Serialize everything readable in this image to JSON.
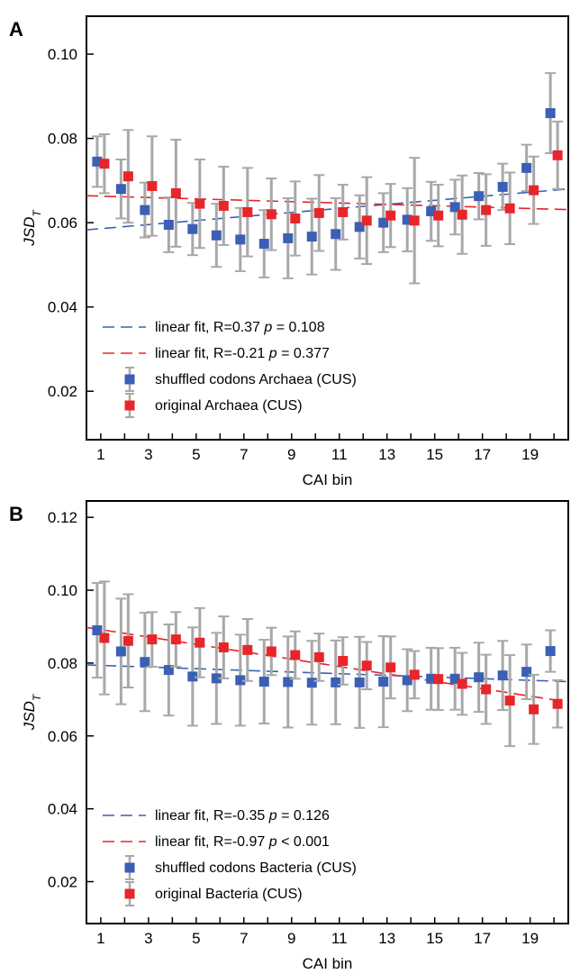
{
  "chart_data": [
    {
      "panel": "A",
      "type": "scatter",
      "xlabel": "CAI bin",
      "ylabel": "JSD",
      "ylabel_sub": "T",
      "xlim": [
        0.4,
        20.6
      ],
      "ylim": [
        0.0085,
        0.109
      ],
      "xticks": [
        1,
        3,
        5,
        7,
        9,
        11,
        13,
        15,
        17,
        19
      ],
      "yticks": [
        0.02,
        0.04,
        0.06,
        0.08,
        0.1
      ],
      "ytick_labels": [
        "0.02",
        "0.04",
        "0.06",
        "0.08",
        "0.10"
      ],
      "colors": {
        "shuffled": "#3a5fb5",
        "original": "#e8252a",
        "errorbar": "#a8a8a8"
      },
      "series": [
        {
          "name": "shuffled codons Archaea (CUS)",
          "marker": "square",
          "color": "#3a5fb5",
          "x": [
            1,
            2,
            3,
            4,
            5,
            6,
            7,
            8,
            9,
            10,
            11,
            12,
            13,
            14,
            15,
            16,
            17,
            18,
            19,
            20
          ],
          "y": [
            0.0745,
            0.068,
            0.063,
            0.0595,
            0.0585,
            0.057,
            0.056,
            0.055,
            0.0563,
            0.0567,
            0.0573,
            0.059,
            0.06,
            0.0607,
            0.0627,
            0.0637,
            0.0663,
            0.0685,
            0.073,
            0.086
          ],
          "err": [
            0.006,
            0.007,
            0.0065,
            0.0065,
            0.0062,
            0.0075,
            0.0075,
            0.008,
            0.0095,
            0.009,
            0.0085,
            0.0075,
            0.007,
            0.0075,
            0.007,
            0.0065,
            0.0055,
            0.0055,
            0.0055,
            0.0095
          ]
        },
        {
          "name": "original Archaea (CUS)",
          "marker": "square",
          "color": "#e8252a",
          "x": [
            1,
            2,
            3,
            4,
            5,
            6,
            7,
            8,
            9,
            10,
            11,
            12,
            13,
            14,
            15,
            16,
            17,
            18,
            19,
            20
          ],
          "y": [
            0.074,
            0.071,
            0.0687,
            0.067,
            0.0645,
            0.064,
            0.0625,
            0.062,
            0.061,
            0.0623,
            0.0625,
            0.0605,
            0.0617,
            0.0605,
            0.0617,
            0.0619,
            0.063,
            0.0634,
            0.0677,
            0.076
          ],
          "err": [
            0.007,
            0.011,
            0.0118,
            0.0127,
            0.0105,
            0.0093,
            0.0105,
            0.0085,
            0.0088,
            0.009,
            0.0065,
            0.0103,
            0.0075,
            0.0149,
            0.0073,
            0.0093,
            0.0085,
            0.0085,
            0.008,
            0.008
          ]
        }
      ],
      "fits": [
        {
          "label": "linear fit, R=0.37",
          "p_text": "p",
          "p_value": "= 0.108",
          "color": "#3a5fb5",
          "y_start": 0.0583,
          "y_end": 0.068
        },
        {
          "label": "linear fit, R=-0.21",
          "p_text": "p",
          "p_value": "= 0.377",
          "color": "#e8252a",
          "y_start": 0.0664,
          "y_end": 0.0631
        }
      ],
      "legend_location": "lower-left"
    },
    {
      "panel": "B",
      "type": "scatter",
      "xlabel": "CAI bin",
      "ylabel": "JSD",
      "ylabel_sub": "T",
      "xlim": [
        0.4,
        20.6
      ],
      "ylim": [
        0.0085,
        0.1245
      ],
      "xticks": [
        1,
        3,
        5,
        7,
        9,
        11,
        13,
        15,
        17,
        19
      ],
      "yticks": [
        0.02,
        0.04,
        0.06,
        0.08,
        0.1,
        0.12
      ],
      "ytick_labels": [
        "0.02",
        "0.04",
        "0.06",
        "0.08",
        "0.10",
        "0.12"
      ],
      "colors": {
        "shuffled": "#3a5fb5",
        "original": "#e8252a",
        "errorbar": "#a8a8a8"
      },
      "series": [
        {
          "name": "shuffled codons Bacteria (CUS)",
          "marker": "square",
          "color": "#3a5fb5",
          "x": [
            1,
            2,
            3,
            4,
            5,
            6,
            7,
            8,
            9,
            10,
            11,
            12,
            13,
            14,
            15,
            16,
            17,
            18,
            19,
            20
          ],
          "y": [
            0.089,
            0.0832,
            0.0803,
            0.0781,
            0.0763,
            0.0758,
            0.0753,
            0.0749,
            0.0748,
            0.0746,
            0.0747,
            0.0747,
            0.0749,
            0.0753,
            0.0757,
            0.0757,
            0.0761,
            0.0766,
            0.0776,
            0.0833
          ],
          "err": [
            0.013,
            0.0145,
            0.0135,
            0.0125,
            0.0135,
            0.0125,
            0.0125,
            0.0115,
            0.0125,
            0.0115,
            0.0115,
            0.0125,
            0.0125,
            0.0085,
            0.0085,
            0.0085,
            0.0095,
            0.0095,
            0.0075,
            0.0057
          ]
        },
        {
          "name": "original Bacteria (CUS)",
          "marker": "square",
          "color": "#e8252a",
          "x": [
            1,
            2,
            3,
            4,
            5,
            6,
            7,
            8,
            9,
            10,
            11,
            12,
            13,
            14,
            15,
            16,
            17,
            18,
            19,
            20
          ],
          "y": [
            0.0869,
            0.0861,
            0.0865,
            0.0865,
            0.0856,
            0.0843,
            0.0836,
            0.0832,
            0.0822,
            0.0816,
            0.0806,
            0.0793,
            0.0788,
            0.0768,
            0.0756,
            0.0743,
            0.0728,
            0.0697,
            0.0673,
            0.0688
          ],
          "err": [
            0.0155,
            0.0128,
            0.0075,
            0.0075,
            0.0095,
            0.0085,
            0.0085,
            0.0065,
            0.0065,
            0.0065,
            0.0065,
            0.0065,
            0.0085,
            0.0065,
            0.0085,
            0.0085,
            0.0095,
            0.0125,
            0.0095,
            0.0065
          ]
        }
      ],
      "fits": [
        {
          "label": "linear fit, R=-0.35",
          "p_text": "p",
          "p_value": "= 0.126",
          "color": "#3a5fb5",
          "y_start": 0.0795,
          "y_end": 0.0749
        },
        {
          "label": "linear fit, R=-0.97",
          "p_text": "p",
          "p_value": "< 0.001",
          "color": "#e8252a",
          "y_start": 0.0898,
          "y_end": 0.0693
        }
      ],
      "legend_location": "lower-left"
    }
  ]
}
